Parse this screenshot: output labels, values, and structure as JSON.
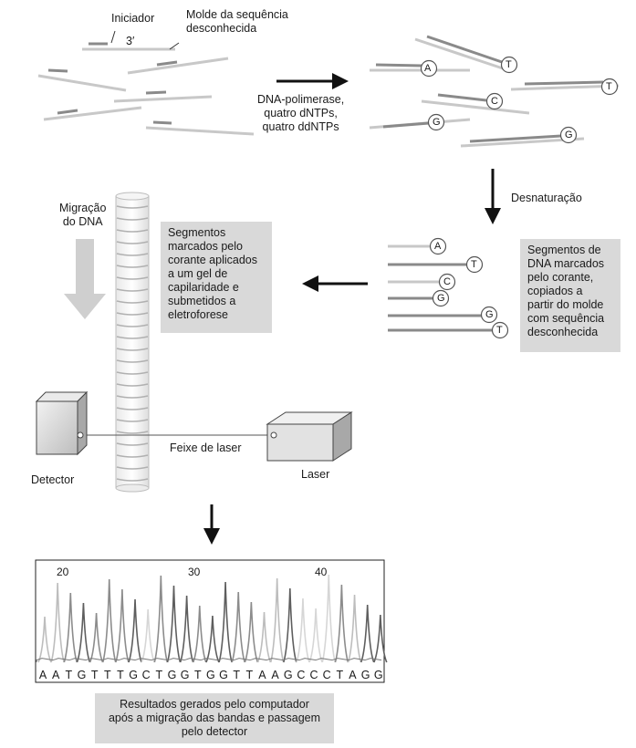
{
  "labels": {
    "primer": "Iniciador",
    "three_prime": "3′",
    "template": "Molde da sequência\ndesconhecida",
    "reagents": "DNA-polimerase,\nquatro dNTPs,\nquatro ddNTPs",
    "denaturation": "Desnaturação",
    "migration": "Migração\ndo DNA",
    "gel_box": "Segmentos\nmarcados pelo\ncorante aplicados\na um gel de\ncapilaridade e\nsubmetidos a\neletroforese",
    "segments_box": "Segmentos de\nDNA marcados\npelo corante,\ncopiados a\npartir do molde\ncom sequência\ndesconhecida",
    "laser_beam": "Feixe de laser",
    "laser": "Laser",
    "detector": "Detector",
    "results_box": "Resultados gerados pelo computador\napós a migração das bandas e passagem\npelo detector"
  },
  "reaction_bases": [
    "A",
    "T",
    "C",
    "T",
    "G",
    "G"
  ],
  "sorted_fragments": [
    "A",
    "T",
    "C",
    "G",
    "G",
    "T"
  ],
  "chromatogram": {
    "ticks": [
      "20",
      "30",
      "40"
    ],
    "sequence": [
      "A",
      "A",
      "T",
      "G",
      "T",
      "T",
      "T",
      "G",
      "C",
      "T",
      "G",
      "G",
      "T",
      "G",
      "G",
      "T",
      "T",
      "A",
      "A",
      "G",
      "C",
      "C",
      "C",
      "T",
      "A",
      "G",
      "G"
    ]
  }
}
